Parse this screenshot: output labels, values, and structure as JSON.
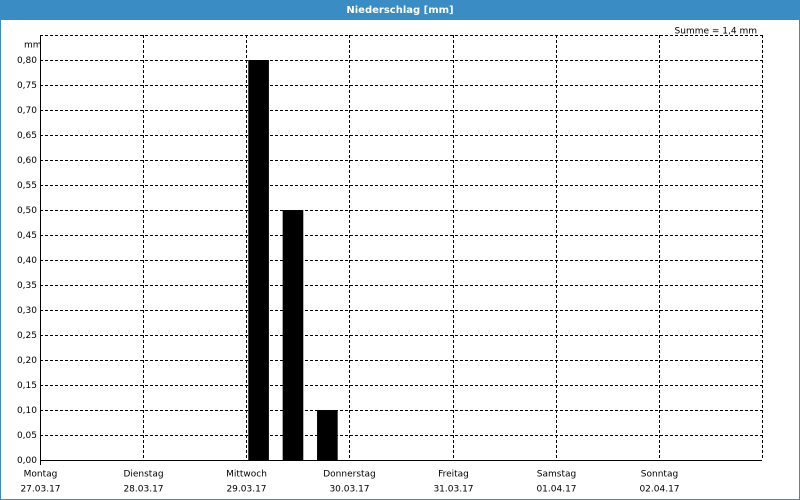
{
  "chart_data": {
    "type": "bar",
    "title": "Niederschlag [mm]",
    "annotation": "Summe = 1,4 mm",
    "y_label": "mm",
    "x": [
      2,
      2.3333,
      2.6667
    ],
    "values": [
      0.8,
      0.5,
      0.1
    ],
    "color": "#000000",
    "xlim": [
      0,
      7
    ],
    "xticks": [
      {
        "value": 0,
        "label": "Montag"
      },
      {
        "value": 1,
        "label": "Dienstag"
      },
      {
        "value": 2,
        "label": "Mittwoch"
      },
      {
        "value": 3,
        "label": "Donnerstag"
      },
      {
        "value": 4,
        "label": "Freitag"
      },
      {
        "value": 5,
        "label": "Samstag"
      },
      {
        "value": 6,
        "label": "Sonntag"
      },
      {
        "value": 7,
        "label": ""
      }
    ],
    "xtick_dates": [
      "27.03.17",
      "28.03.17",
      "29.03.17",
      "30.03.17",
      "31.03.17",
      "01.04.17",
      "02.04.17",
      null
    ],
    "ylim": [
      0,
      0.85
    ],
    "yticks": [
      {
        "value": 0,
        "label": "0,00"
      },
      {
        "value": 0.05,
        "label": "0,05"
      },
      {
        "value": 0.1,
        "label": "0,10"
      },
      {
        "value": 0.15,
        "label": "0,15"
      },
      {
        "value": 0.2,
        "label": "0,20"
      },
      {
        "value": 0.25,
        "label": "0,25"
      },
      {
        "value": 0.3,
        "label": "0,30"
      },
      {
        "value": 0.35,
        "label": "0,35"
      },
      {
        "value": 0.4,
        "label": "0,40"
      },
      {
        "value": 0.45,
        "label": "0,45"
      },
      {
        "value": 0.5,
        "label": "0,50"
      },
      {
        "value": 0.55,
        "label": "0,55"
      },
      {
        "value": 0.6,
        "label": "0,60"
      },
      {
        "value": 0.65,
        "label": "0,65"
      },
      {
        "value": 0.7,
        "label": "0,70"
      },
      {
        "value": 0.75,
        "label": "0,75"
      },
      {
        "value": 0.8,
        "label": "0,80"
      }
    ],
    "grid": true
  }
}
